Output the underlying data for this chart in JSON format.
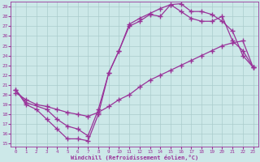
{
  "xlabel": "Windchill (Refroidissement éolien,°C)",
  "bg_color": "#cce8e8",
  "grid_color": "#aacccc",
  "line_color": "#993399",
  "xlim": [
    0,
    23
  ],
  "ylim": [
    15,
    29
  ],
  "xticks": [
    0,
    1,
    2,
    3,
    4,
    5,
    6,
    7,
    8,
    9,
    10,
    11,
    12,
    13,
    14,
    15,
    16,
    17,
    18,
    19,
    20,
    21,
    22,
    23
  ],
  "yticks": [
    15,
    16,
    17,
    18,
    19,
    20,
    21,
    22,
    23,
    24,
    25,
    26,
    27,
    28,
    29
  ],
  "curve1_x": [
    0,
    1,
    2,
    3,
    4,
    5,
    6,
    7,
    8,
    9,
    10,
    11,
    12,
    13,
    14,
    15,
    16,
    17,
    18,
    19,
    20,
    21,
    22,
    23
  ],
  "curve1_y": [
    20.5,
    19.0,
    18.5,
    17.5,
    16.5,
    15.5,
    15.5,
    15.3,
    18.0,
    22.2,
    24.5,
    27.0,
    27.5,
    28.2,
    28.0,
    29.2,
    29.3,
    28.5,
    28.5,
    28.2,
    27.5,
    26.5,
    24.0,
    22.8
  ],
  "curve2_x": [
    0,
    1,
    2,
    3,
    4,
    5,
    6,
    7,
    8,
    9,
    10,
    11,
    12,
    13,
    14,
    15,
    16,
    17,
    18,
    19,
    20,
    21,
    22,
    23
  ],
  "curve2_y": [
    20.2,
    19.5,
    19.0,
    18.8,
    18.5,
    18.2,
    18.0,
    17.8,
    18.2,
    18.8,
    19.5,
    20.0,
    20.8,
    21.5,
    22.0,
    22.5,
    23.0,
    23.5,
    24.0,
    24.5,
    25.0,
    25.3,
    25.5,
    22.8
  ],
  "curve3_x": [
    0,
    1,
    3,
    4,
    5,
    6,
    7,
    8,
    9,
    10,
    11,
    12,
    13,
    14,
    15,
    16,
    17,
    18,
    19,
    20,
    21,
    22,
    23
  ],
  "curve3_y": [
    20.5,
    19.2,
    18.5,
    17.5,
    16.8,
    16.5,
    15.8,
    18.5,
    22.2,
    24.5,
    27.2,
    27.8,
    28.3,
    28.8,
    29.2,
    28.5,
    27.8,
    27.5,
    27.5,
    28.0,
    25.5,
    24.5,
    22.8
  ],
  "marker": "+",
  "markersize": 4,
  "linewidth": 0.9
}
